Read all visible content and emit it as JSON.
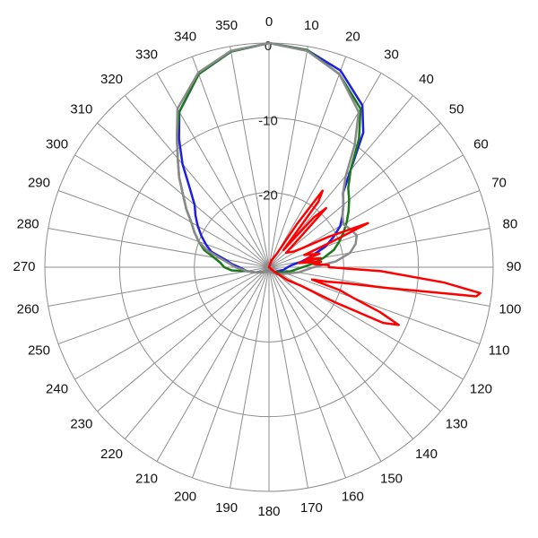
{
  "chart_data": {
    "type": "polar-line",
    "title": "",
    "angle_unit": "degrees",
    "angle_ticks": [
      "0",
      "10",
      "20",
      "30",
      "40",
      "50",
      "60",
      "70",
      "80",
      "90",
      "100",
      "110",
      "120",
      "130",
      "140",
      "150",
      "160",
      "170",
      "180",
      "190",
      "200",
      "210",
      "220",
      "230",
      "240",
      "250",
      "260",
      "270",
      "280",
      "290",
      "300",
      "310",
      "320",
      "330",
      "340",
      "350"
    ],
    "radial_ticks": [
      {
        "value": 0,
        "label": "0"
      },
      {
        "value": -10,
        "label": "-10"
      },
      {
        "value": -20,
        "label": "-20"
      }
    ],
    "radial_range": [
      -30,
      0
    ],
    "grid": true,
    "legend": "none",
    "series": [
      {
        "color": "#1f1fe0",
        "points": [
          [
            0,
            0
          ],
          [
            10,
            -0.5
          ],
          [
            20,
            -2
          ],
          [
            30,
            -5
          ],
          [
            35,
            -8
          ],
          [
            40,
            -13
          ],
          [
            45,
            -16
          ],
          [
            50,
            -17
          ],
          [
            55,
            -18
          ],
          [
            60,
            -19
          ],
          [
            65,
            -20.5
          ],
          [
            70,
            -22
          ],
          [
            75,
            -24
          ],
          [
            80,
            -25.5
          ],
          [
            85,
            -27
          ],
          [
            90,
            -27.5
          ],
          [
            100,
            -28
          ],
          [
            110,
            -28.5
          ],
          [
            130,
            -29
          ],
          [
            180,
            -29.5
          ],
          [
            230,
            -29
          ],
          [
            250,
            -28
          ],
          [
            260,
            -27
          ],
          [
            270,
            -26
          ],
          [
            275,
            -25
          ],
          [
            280,
            -24
          ],
          [
            285,
            -22
          ],
          [
            290,
            -21
          ],
          [
            295,
            -20
          ],
          [
            300,
            -19
          ],
          [
            305,
            -18
          ],
          [
            310,
            -17
          ],
          [
            315,
            -15
          ],
          [
            320,
            -12
          ],
          [
            325,
            -9
          ],
          [
            330,
            -6
          ],
          [
            340,
            -2.5
          ],
          [
            350,
            -0.7
          ],
          [
            360,
            0
          ]
        ]
      },
      {
        "color": "#1a7a1a",
        "points": [
          [
            0,
            0
          ],
          [
            10,
            -0.5
          ],
          [
            20,
            -2.5
          ],
          [
            30,
            -5.5
          ],
          [
            35,
            -9
          ],
          [
            40,
            -13
          ],
          [
            45,
            -15
          ],
          [
            50,
            -16
          ],
          [
            55,
            -17
          ],
          [
            60,
            -18
          ],
          [
            65,
            -19
          ],
          [
            70,
            -20
          ],
          [
            75,
            -21
          ],
          [
            80,
            -22.5
          ],
          [
            85,
            -24
          ],
          [
            90,
            -25.5
          ],
          [
            100,
            -27
          ],
          [
            110,
            -28
          ],
          [
            130,
            -29
          ],
          [
            180,
            -29.5
          ],
          [
            230,
            -29
          ],
          [
            250,
            -28
          ],
          [
            260,
            -27
          ],
          [
            265,
            -25
          ],
          [
            270,
            -24
          ],
          [
            275,
            -23.5
          ],
          [
            280,
            -22.5
          ],
          [
            285,
            -21
          ],
          [
            290,
            -20
          ],
          [
            295,
            -19
          ],
          [
            300,
            -18
          ],
          [
            305,
            -16.5
          ],
          [
            310,
            -15
          ],
          [
            315,
            -13
          ],
          [
            320,
            -11
          ],
          [
            325,
            -8.5
          ],
          [
            330,
            -6
          ],
          [
            340,
            -2.5
          ],
          [
            350,
            -0.7
          ],
          [
            360,
            0
          ]
        ]
      },
      {
        "color": "#8a8a8a",
        "points": [
          [
            0,
            0
          ],
          [
            10,
            -0.6
          ],
          [
            20,
            -2.5
          ],
          [
            30,
            -6
          ],
          [
            35,
            -10
          ],
          [
            40,
            -14
          ],
          [
            45,
            -16
          ],
          [
            50,
            -17
          ],
          [
            55,
            -18
          ],
          [
            60,
            -18.5
          ],
          [
            65,
            -18
          ],
          [
            70,
            -17.5
          ],
          [
            75,
            -18
          ],
          [
            80,
            -19
          ],
          [
            85,
            -21
          ],
          [
            90,
            -24
          ],
          [
            100,
            -26
          ],
          [
            110,
            -27.5
          ],
          [
            130,
            -28.5
          ],
          [
            180,
            -29.5
          ],
          [
            230,
            -29
          ],
          [
            250,
            -28
          ],
          [
            260,
            -27
          ],
          [
            270,
            -25.5
          ],
          [
            280,
            -23.5
          ],
          [
            285,
            -21.5
          ],
          [
            290,
            -20
          ],
          [
            295,
            -19
          ],
          [
            300,
            -18
          ],
          [
            305,
            -16.5
          ],
          [
            310,
            -15
          ],
          [
            315,
            -13
          ],
          [
            320,
            -11
          ],
          [
            325,
            -8.5
          ],
          [
            330,
            -5.5
          ],
          [
            340,
            -2.3
          ],
          [
            350,
            -0.6
          ],
          [
            360,
            0
          ]
        ]
      },
      {
        "color": "#ff0000",
        "points": [
          [
            0,
            -30
          ],
          [
            20,
            -29
          ],
          [
            30,
            -28
          ],
          [
            33,
            -23
          ],
          [
            35,
            -17.5
          ],
          [
            37,
            -19
          ],
          [
            40,
            -27
          ],
          [
            42,
            -21
          ],
          [
            44,
            -19
          ],
          [
            46,
            -24
          ],
          [
            50,
            -27
          ],
          [
            58,
            -26
          ],
          [
            60,
            -25
          ],
          [
            63,
            -21
          ],
          [
            66,
            -15.5
          ],
          [
            68,
            -21
          ],
          [
            71,
            -25
          ],
          [
            75,
            -23
          ],
          [
            78,
            -25
          ],
          [
            80,
            -23
          ],
          [
            82,
            -26
          ],
          [
            84,
            -23
          ],
          [
            86,
            -24
          ],
          [
            88,
            -22
          ],
          [
            90,
            -22
          ],
          [
            92,
            -15
          ],
          [
            95,
            -6.5
          ],
          [
            97,
            -1.5
          ],
          [
            98,
            -2
          ],
          [
            100,
            -14
          ],
          [
            102,
            -20
          ],
          [
            104,
            -22
          ],
          [
            106,
            -24
          ],
          [
            108,
            -20
          ],
          [
            110,
            -18
          ],
          [
            112,
            -14
          ],
          [
            114,
            -11
          ],
          [
            116,
            -13
          ],
          [
            118,
            -20
          ],
          [
            120,
            -25
          ],
          [
            125,
            -27
          ],
          [
            130,
            -29
          ],
          [
            180,
            -30
          ],
          [
            360,
            -30
          ]
        ]
      }
    ]
  }
}
